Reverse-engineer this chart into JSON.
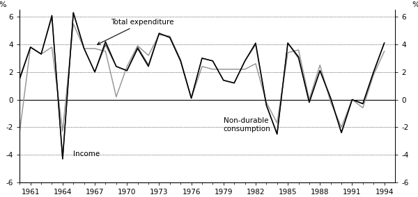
{
  "years": [
    1960,
    1961,
    1962,
    1963,
    1964,
    1965,
    1966,
    1967,
    1968,
    1969,
    1970,
    1971,
    1972,
    1973,
    1974,
    1975,
    1976,
    1977,
    1978,
    1979,
    1980,
    1981,
    1982,
    1983,
    1984,
    1985,
    1986,
    1987,
    1988,
    1989,
    1990,
    1991,
    1992,
    1993,
    1994
  ],
  "income": [
    1.5,
    3.8,
    3.3,
    6.1,
    -4.3,
    6.3,
    3.7,
    2.0,
    4.2,
    2.4,
    2.1,
    3.7,
    2.4,
    4.8,
    4.5,
    2.8,
    0.1,
    3.0,
    2.8,
    1.4,
    1.2,
    2.8,
    4.1,
    -0.4,
    -2.5,
    4.1,
    3.1,
    -0.2,
    2.1,
    0.1,
    -2.4,
    0.0,
    -0.3,
    2.0,
    4.1
  ],
  "nondurable": [
    -2.3,
    3.8,
    3.3,
    3.8,
    -2.3,
    5.5,
    3.7,
    3.7,
    3.5,
    0.2,
    2.4,
    3.9,
    3.2,
    4.7,
    4.6,
    2.9,
    0.1,
    2.4,
    2.2,
    2.2,
    2.2,
    2.2,
    2.6,
    -0.2,
    -1.7,
    3.4,
    3.6,
    0.0,
    2.5,
    -0.2,
    -2.0,
    0.0,
    -0.6,
    1.8,
    3.5
  ],
  "total_exp": [
    1.6,
    3.8,
    3.3,
    6.0,
    -4.3,
    6.3,
    3.7,
    2.0,
    4.0,
    2.4,
    2.1,
    3.8,
    2.5,
    4.8,
    4.5,
    2.8,
    0.1,
    3.0,
    2.8,
    1.4,
    1.2,
    2.8,
    4.0,
    -0.4,
    -2.5,
    4.1,
    3.0,
    -0.2,
    2.1,
    0.1,
    -2.4,
    0.0,
    -0.3,
    2.0,
    4.1
  ],
  "income_color": "#000000",
  "nondurable_color": "#999999",
  "total_exp_color": "#555555",
  "ylim": [
    -6,
    6.5
  ],
  "ytick_vals": [
    -6,
    -4,
    -2,
    0,
    2,
    4,
    6
  ],
  "ytick_labels": [
    "-6",
    "-4",
    "-2",
    "0",
    "2",
    "4",
    "6"
  ],
  "xlim": [
    1960,
    1995
  ],
  "xtick_vals": [
    1961,
    1964,
    1967,
    1970,
    1973,
    1976,
    1979,
    1982,
    1985,
    1988,
    1991,
    1994
  ],
  "ylabel_left": "%",
  "ylabel_right": "%"
}
